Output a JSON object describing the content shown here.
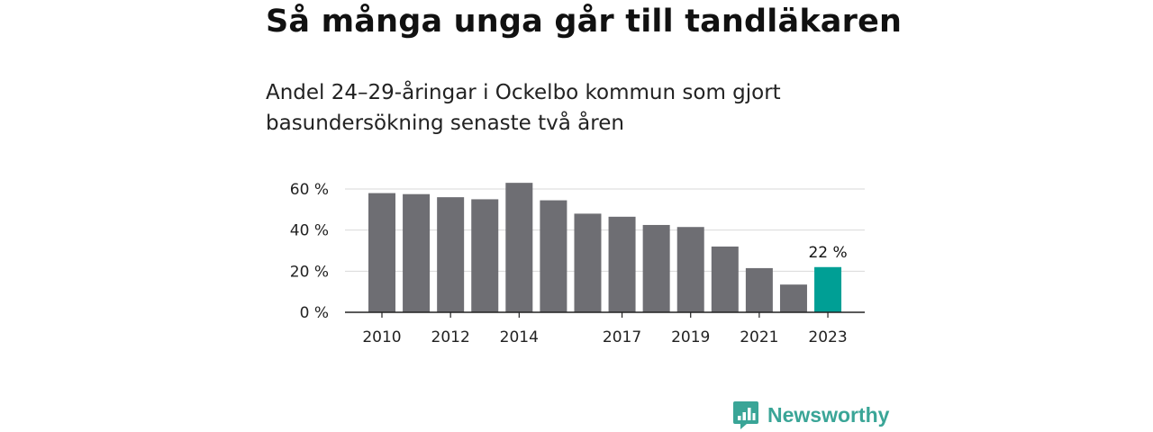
{
  "header": {
    "title": "Så många unga går till tandläkaren",
    "subtitle": "Andel 24–29-åringar i Ockelbo kommun som gjort basundersökning senaste två åren"
  },
  "chart_data": {
    "type": "bar",
    "categories": [
      "2010",
      "2011",
      "2012",
      "2013",
      "2014",
      "2015",
      "2016",
      "2017",
      "2018",
      "2019",
      "2020",
      "2021",
      "2022",
      "2023"
    ],
    "x_tick_labels": [
      "2010",
      "2012",
      "2014",
      "2017",
      "2019",
      "2021",
      "2023"
    ],
    "series": [
      {
        "values": [
          58,
          57.5,
          56,
          55,
          63,
          54.5,
          48,
          46.5,
          42.5,
          41.5,
          32,
          21.5,
          13.5,
          22
        ]
      }
    ],
    "y_ticks": [
      0,
      20,
      40,
      60
    ],
    "y_tick_labels": [
      "0 %",
      "20 %",
      "40 %",
      "60 %"
    ],
    "ylim": [
      0,
      60
    ],
    "grid": true,
    "highlight_index": 13,
    "annotation": {
      "category": "2023",
      "text": "22 %"
    },
    "colors": {
      "bar": "#6e6e73",
      "highlight": "#009f95",
      "grid": "#d9d9d9",
      "axis": "#222222"
    }
  },
  "brand": {
    "name": "Newsworthy",
    "logo_icon": "bar-chart-speech-bubble-icon",
    "color": "#3aa597"
  }
}
